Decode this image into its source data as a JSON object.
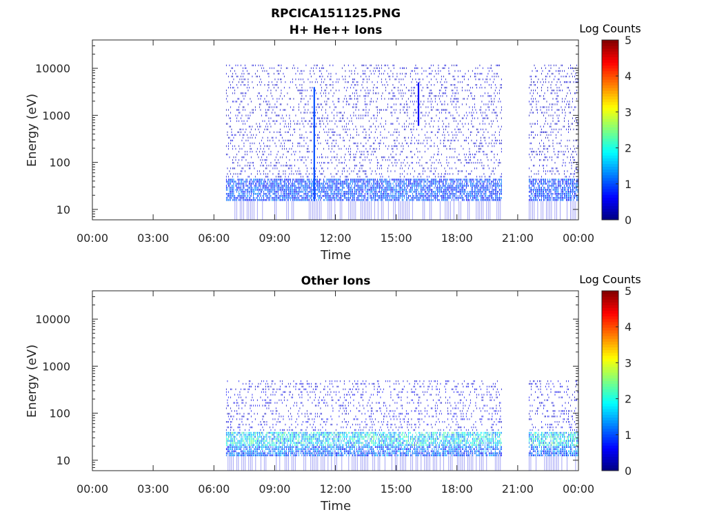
{
  "figure": {
    "title": "RPCICA151125.PNG"
  },
  "colors": {
    "axis": "#262626",
    "colormap": [
      "#00007f",
      "#0000ff",
      "#007fff",
      "#00ffff",
      "#7fff7f",
      "#ffff00",
      "#ff7f00",
      "#ff0000",
      "#7f0000"
    ]
  },
  "chart_data": [
    {
      "type": "heatmap",
      "title": "H+ He++ Ions",
      "xlabel": "Time",
      "ylabel": "Energy (eV)",
      "x_tick_labels": [
        "00:00",
        "03:00",
        "06:00",
        "09:00",
        "12:00",
        "15:00",
        "18:00",
        "21:00",
        "00:00"
      ],
      "x_range_hours": [
        0,
        24
      ],
      "y_scale": "log",
      "y_range_eV": [
        6,
        40000
      ],
      "y_ticks": [
        10,
        100,
        1000,
        10000
      ],
      "y_tick_labels": [
        "10",
        "100",
        "1000",
        "10000"
      ],
      "colorbar": {
        "label": "Log Counts",
        "range": [
          0,
          5
        ],
        "ticks": [
          "0",
          "1",
          "2",
          "3",
          "4",
          "5"
        ]
      },
      "data_intervals_hours": [
        [
          6.6,
          20.2
        ],
        [
          21.55,
          24.0
        ]
      ],
      "bands": [
        {
          "e_min_eV": 15,
          "e_max_eV": 45,
          "log_counts": 1.0
        },
        {
          "e_min_eV": 45,
          "e_max_eV": 12000,
          "log_counts": 0.4
        }
      ],
      "features": [
        {
          "time_hours": 10.95,
          "e_min_eV": 15,
          "e_max_eV": 4000,
          "log_counts": 1.0
        },
        {
          "time_hours": 16.1,
          "e_min_eV": 600,
          "e_max_eV": 5000,
          "log_counts": 0.6
        }
      ]
    },
    {
      "type": "heatmap",
      "title": "Other Ions",
      "xlabel": "Time",
      "ylabel": "Energy (eV)",
      "x_tick_labels": [
        "00:00",
        "03:00",
        "06:00",
        "09:00",
        "12:00",
        "15:00",
        "18:00",
        "21:00",
        "00:00"
      ],
      "x_range_hours": [
        0,
        24
      ],
      "y_scale": "log",
      "y_range_eV": [
        6,
        40000
      ],
      "y_ticks": [
        10,
        100,
        1000,
        10000
      ],
      "y_tick_labels": [
        "10",
        "100",
        "1000",
        "10000"
      ],
      "colorbar": {
        "label": "Log Counts",
        "range": [
          0,
          5
        ],
        "ticks": [
          "0",
          "1",
          "2",
          "3",
          "4",
          "5"
        ]
      },
      "data_intervals_hours": [
        [
          6.6,
          20.2
        ],
        [
          21.55,
          24.0
        ]
      ],
      "bands": [
        {
          "e_min_eV": 20,
          "e_max_eV": 40,
          "log_counts": 1.8
        },
        {
          "e_min_eV": 12,
          "e_max_eV": 20,
          "log_counts": 1.2
        },
        {
          "e_min_eV": 40,
          "e_max_eV": 500,
          "log_counts": 0.5
        }
      ],
      "features": []
    }
  ]
}
